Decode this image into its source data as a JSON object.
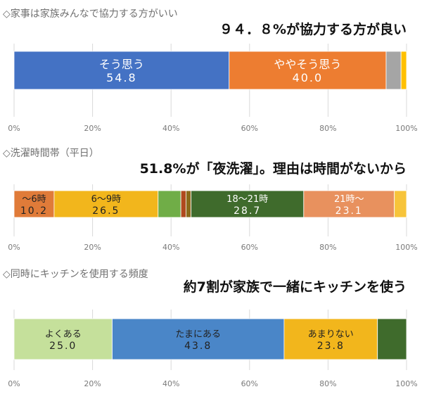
{
  "chart_data": [
    {
      "type": "bar",
      "orientation": "horizontal-stacked",
      "title": "◇家事は家族みんなで協力する方がいい",
      "headline": "９４．８%が協力する方が良い",
      "xlim": [
        0,
        100
      ],
      "tick_labels": [
        "0%",
        "20%",
        "40%",
        "60%",
        "80%",
        "100%"
      ],
      "gridlines": true,
      "segments": [
        {
          "label": "そう思う",
          "value": 54.8,
          "value_text": "54.8",
          "color": "#4472c4",
          "text_color": "#ffffff"
        },
        {
          "label": "ややそう思う",
          "value": 40.0,
          "value_text": "40.0",
          "color": "#ed7d31",
          "text_color": "#ffffff"
        },
        {
          "label": "",
          "value": 3.8,
          "value_text": "",
          "color": "#a5a5a5",
          "text_color": "#ffffff"
        },
        {
          "label": "",
          "value": 1.4,
          "value_text": "",
          "color": "#ffc000",
          "text_color": "#ffffff"
        }
      ]
    },
    {
      "type": "bar",
      "orientation": "horizontal-stacked",
      "title": "◇洗濯時間帯（平日）",
      "headline": "51.8%が「夜洗濯」。理由は時間がないから",
      "xlim": [
        0,
        100
      ],
      "tick_labels": [
        "0%",
        "20%",
        "40%",
        "60%",
        "80%",
        "100%"
      ],
      "gridlines": true,
      "segments": [
        {
          "label": "～6時",
          "value": 10.2,
          "value_text": "10.2",
          "color": "#e07b39",
          "text_color": "#222222"
        },
        {
          "label": "6～9時",
          "value": 26.5,
          "value_text": "26.5",
          "color": "#f2b61c",
          "text_color": "#222222"
        },
        {
          "label": "",
          "value": 5.8,
          "value_text": "",
          "color": "#70ad47",
          "text_color": "#ffffff"
        },
        {
          "label": "",
          "value": 1.3,
          "value_text": "",
          "color": "#b04a1e",
          "text_color": "#ffffff"
        },
        {
          "label": "",
          "value": 1.3,
          "value_text": "",
          "color": "#8b6a1a",
          "text_color": "#ffffff"
        },
        {
          "label": "18～21時",
          "value": 28.7,
          "value_text": "28.7",
          "color": "#3f6b2c",
          "text_color": "#ffffff"
        },
        {
          "label": "21時～",
          "value": 23.1,
          "value_text": "23.1",
          "color": "#e8915e",
          "text_color": "#ffffff"
        },
        {
          "label": "",
          "value": 3.1,
          "value_text": "",
          "color": "#f7c43a",
          "text_color": "#ffffff"
        }
      ]
    },
    {
      "type": "bar",
      "orientation": "horizontal-stacked",
      "title": "◇同時にキッチンを使用する頻度",
      "headline": "約7割が家族で一緒にキッチンを使う",
      "xlim": [
        0,
        100
      ],
      "tick_labels": [
        "0%",
        "20%",
        "40%",
        "60%",
        "80%",
        "100%"
      ],
      "gridlines": true,
      "segments": [
        {
          "label": "よくある",
          "value": 25.0,
          "value_text": "25.0",
          "color": "#c5e09b",
          "text_color": "#222222"
        },
        {
          "label": "たまにある",
          "value": 43.8,
          "value_text": "43.8",
          "color": "#4a86c8",
          "text_color": "#222222"
        },
        {
          "label": "あまりない",
          "value": 23.8,
          "value_text": "23.8",
          "color": "#f2b61c",
          "text_color": "#222222"
        },
        {
          "label": "",
          "value": 7.4,
          "value_text": "",
          "color": "#3f6b2c",
          "text_color": "#ffffff"
        }
      ]
    }
  ]
}
